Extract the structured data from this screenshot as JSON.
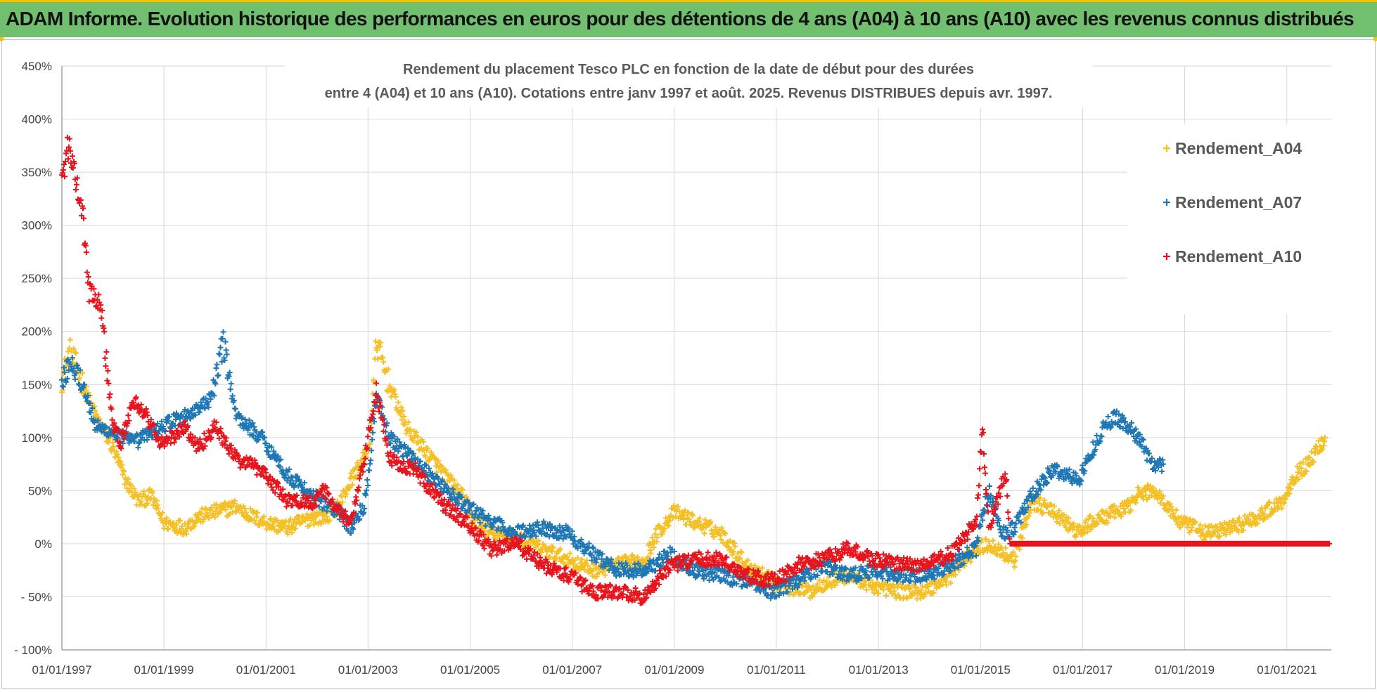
{
  "banner": {
    "text": "ADAM Informe. Evolution historique des performances en euros pour des détentions de 4 ans (A04) à 10 ans (A10) avec les revenus connus distribués",
    "background": "#70c06f"
  },
  "chart_data": {
    "type": "scatter",
    "title_lines": [
      "Rendement du placement Tesco PLC en fonction de la date de début pour des durées",
      "entre 4 (A04) et 10 ans (A10).  Cotations entre janv 1997 et août. 2025. Revenus DISTRIBUES depuis avr. 1997."
    ],
    "xlabel": "",
    "ylabel": "",
    "xlim": [
      "1997-01-01",
      "2021-11-15"
    ],
    "ylim": [
      -100,
      450
    ],
    "y_ticks": [
      -100,
      -50,
      0,
      50,
      100,
      150,
      200,
      250,
      300,
      350,
      400,
      450
    ],
    "y_tick_labels": [
      "- 100%",
      "- 50%",
      "0%",
      "50%",
      "100%",
      "150%",
      "200%",
      "250%",
      "300%",
      "350%",
      "400%",
      "450%"
    ],
    "x_tick_labels": [
      "01/01/1997",
      "01/01/1999",
      "01/01/2001",
      "01/01/2003",
      "01/01/2005",
      "01/01/2007",
      "01/01/2009",
      "01/01/2011",
      "01/01/2013",
      "01/01/2015",
      "01/01/2017",
      "01/01/2019",
      "01/01/2021"
    ],
    "grid": true,
    "marker": "plus",
    "legend_position": "right",
    "series": [
      {
        "name": "Rendement_A04",
        "color": "#f5c026",
        "x": [
          "1997-01-01",
          "1997-03-01",
          "1997-06-01",
          "1997-09-01",
          "1998-01-01",
          "1998-04-01",
          "1998-07-01",
          "1998-10-01",
          "1999-01-01",
          "1999-06-01",
          "1999-09-01",
          "2000-01-01",
          "2000-06-01",
          "2000-10-01",
          "2001-01-01",
          "2001-06-01",
          "2001-12-01",
          "2002-03-01",
          "2002-06-01",
          "2002-09-01",
          "2002-12-01",
          "2003-01-15",
          "2003-03-01",
          "2003-06-01",
          "2003-10-01",
          "2004-01-01",
          "2004-06-01",
          "2004-12-01",
          "2005-01-01",
          "2005-06-01",
          "2005-12-01",
          "2006-06-01",
          "2006-12-01",
          "2007-03-01",
          "2007-06-01",
          "2007-12-01",
          "2008-06-01",
          "2008-09-01",
          "2009-01-01",
          "2009-06-01",
          "2009-12-01",
          "2010-03-01",
          "2010-06-01",
          "2010-12-01",
          "2011-03-01",
          "2011-09-01",
          "2012-01-01",
          "2012-06-01",
          "2012-12-01",
          "2013-06-01",
          "2013-12-01",
          "2014-06-01",
          "2014-12-01",
          "2015-03-01",
          "2015-09-01",
          "2016-01-01",
          "2016-06-01",
          "2016-12-01",
          "2017-03-01",
          "2017-06-01",
          "2017-12-01",
          "2018-01-01",
          "2018-06-01",
          "2018-12-01",
          "2019-06-01",
          "2019-12-01",
          "2020-03-01",
          "2020-06-01",
          "2020-12-01",
          "2021-03-01",
          "2021-06-01",
          "2021-10-01"
        ],
        "values": [
          155,
          180,
          150,
          120,
          90,
          60,
          40,
          45,
          20,
          15,
          25,
          30,
          35,
          25,
          20,
          15,
          25,
          25,
          35,
          60,
          80,
          95,
          190,
          150,
          110,
          95,
          70,
          40,
          25,
          10,
          5,
          -5,
          -15,
          -20,
          -25,
          -20,
          -15,
          10,
          30,
          20,
          10,
          -5,
          -20,
          -35,
          -40,
          -45,
          -35,
          -30,
          -40,
          -45,
          -45,
          -30,
          -5,
          0,
          -15,
          40,
          30,
          10,
          20,
          25,
          35,
          45,
          50,
          20,
          10,
          15,
          20,
          25,
          40,
          65,
          75,
          100
        ]
      },
      {
        "name": "Rendement_A07",
        "color": "#1f77b4",
        "x": [
          "1997-01-01",
          "1997-03-01",
          "1997-06-01",
          "1997-09-01",
          "1998-01-01",
          "1998-06-01",
          "1998-12-01",
          "1999-06-01",
          "1999-12-01",
          "2000-03-01",
          "2000-06-01",
          "2000-12-01",
          "2001-06-01",
          "2001-12-01",
          "2002-06-01",
          "2002-09-01",
          "2002-12-01",
          "2003-01-15",
          "2003-03-01",
          "2003-06-01",
          "2004-01-01",
          "2004-06-01",
          "2004-12-01",
          "2005-06-01",
          "2005-12-01",
          "2006-06-01",
          "2006-12-01",
          "2007-06-01",
          "2007-12-01",
          "2008-06-01",
          "2008-12-01",
          "2009-06-01",
          "2009-12-01",
          "2010-06-01",
          "2010-12-01",
          "2011-06-01",
          "2011-12-01",
          "2012-06-01",
          "2012-12-01",
          "2013-06-01",
          "2013-12-01",
          "2014-06-01",
          "2014-12-01",
          "2015-01-01",
          "2015-03-01",
          "2015-06-01",
          "2015-09-01",
          "2016-01-01",
          "2016-06-01",
          "2016-12-01",
          "2017-03-01",
          "2017-06-01",
          "2017-09-01",
          "2018-01-01",
          "2018-03-01",
          "2018-06-01",
          "2018-08-01"
        ],
        "values": [
          150,
          175,
          150,
          110,
          105,
          95,
          110,
          120,
          135,
          190,
          120,
          100,
          65,
          45,
          30,
          15,
          35,
          75,
          140,
          100,
          75,
          55,
          35,
          20,
          10,
          15,
          10,
          -10,
          -25,
          -25,
          -10,
          -25,
          -30,
          -35,
          -45,
          -35,
          -20,
          -30,
          -25,
          -30,
          -30,
          -20,
          -5,
          20,
          50,
          10,
          15,
          45,
          70,
          60,
          85,
          110,
          120,
          105,
          95,
          70,
          75
        ]
      },
      {
        "name": "Rendement_A10",
        "color": "#e8141d",
        "x": [
          "1997-01-01",
          "1997-02-15",
          "1997-04-01",
          "1997-06-01",
          "1997-07-15",
          "1997-10-01",
          "1998-01-01",
          "1998-03-01",
          "1998-06-01",
          "1998-09-01",
          "1998-12-01",
          "1999-03-01",
          "1999-06-01",
          "1999-09-01",
          "2000-01-01",
          "2000-06-01",
          "2000-12-01",
          "2001-06-01",
          "2001-12-01",
          "2002-03-01",
          "2002-06-01",
          "2002-09-01",
          "2002-12-01",
          "2003-01-15",
          "2003-03-01",
          "2003-06-01",
          "2003-12-01",
          "2004-06-01",
          "2004-12-01",
          "2005-06-01",
          "2005-12-01",
          "2006-06-01",
          "2006-12-01",
          "2007-06-01",
          "2007-12-01",
          "2008-06-01",
          "2008-12-01",
          "2009-06-01",
          "2009-12-01",
          "2010-06-01",
          "2010-12-01",
          "2011-03-01",
          "2011-06-01",
          "2011-12-01",
          "2012-06-01",
          "2012-12-01",
          "2013-06-01",
          "2013-12-01",
          "2014-06-01",
          "2014-09-01",
          "2014-12-01",
          "2015-01-15",
          "2015-03-01",
          "2015-06-01",
          "2015-07-01",
          "2015-08-01",
          "2016-01-01",
          "2017-01-01",
          "2018-01-01",
          "2019-01-01",
          "2020-01-01",
          "2021-01-01",
          "2021-11-01"
        ],
        "values": [
          340,
          375,
          350,
          310,
          240,
          230,
          110,
          95,
          135,
          120,
          95,
          100,
          110,
          90,
          110,
          80,
          70,
          40,
          40,
          50,
          30,
          20,
          75,
          110,
          145,
          80,
          70,
          40,
          20,
          -5,
          0,
          -20,
          -30,
          -45,
          -45,
          -50,
          -20,
          -15,
          -15,
          -30,
          -35,
          -30,
          -20,
          -15,
          -5,
          -15,
          -20,
          -20,
          -10,
          5,
          20,
          110,
          15,
          55,
          65,
          0,
          0,
          0,
          0,
          0,
          0,
          0,
          0
        ]
      }
    ]
  }
}
